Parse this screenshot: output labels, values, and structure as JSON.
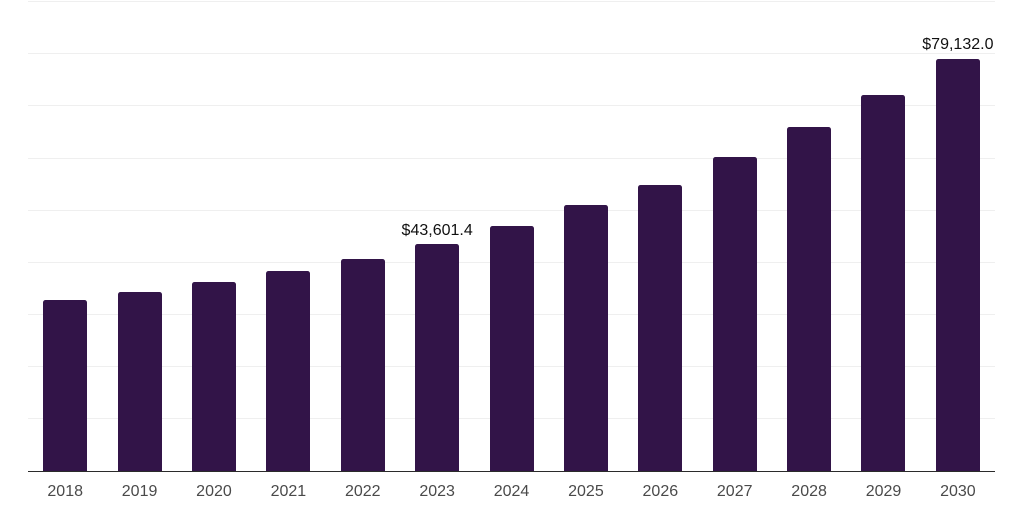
{
  "chart_data": {
    "type": "bar",
    "title": "",
    "xlabel": "",
    "ylabel": "",
    "categories": [
      "2018",
      "2019",
      "2020",
      "2021",
      "2022",
      "2023",
      "2024",
      "2025",
      "2026",
      "2027",
      "2028",
      "2029",
      "2030"
    ],
    "values": [
      32800,
      34500,
      36300,
      38400,
      40800,
      43601.4,
      47000,
      51000,
      55000,
      60200,
      66000,
      72200,
      79132.0
    ],
    "data_labels": [
      "",
      "",
      "",
      "",
      "",
      "$43,601.4",
      "",
      "",
      "",
      "",
      "",
      "",
      "$79,132.0"
    ],
    "ylim": [
      0,
      90000
    ],
    "gridline_step": 10000,
    "grid": "horizontal",
    "legend": "none",
    "colors": {
      "bar": "#321448",
      "gridline": "#efefef",
      "axis_line": "#2b2b2b",
      "tick_label": "#4a4a4a",
      "value_label": "#111111",
      "background": "#ffffff"
    }
  }
}
